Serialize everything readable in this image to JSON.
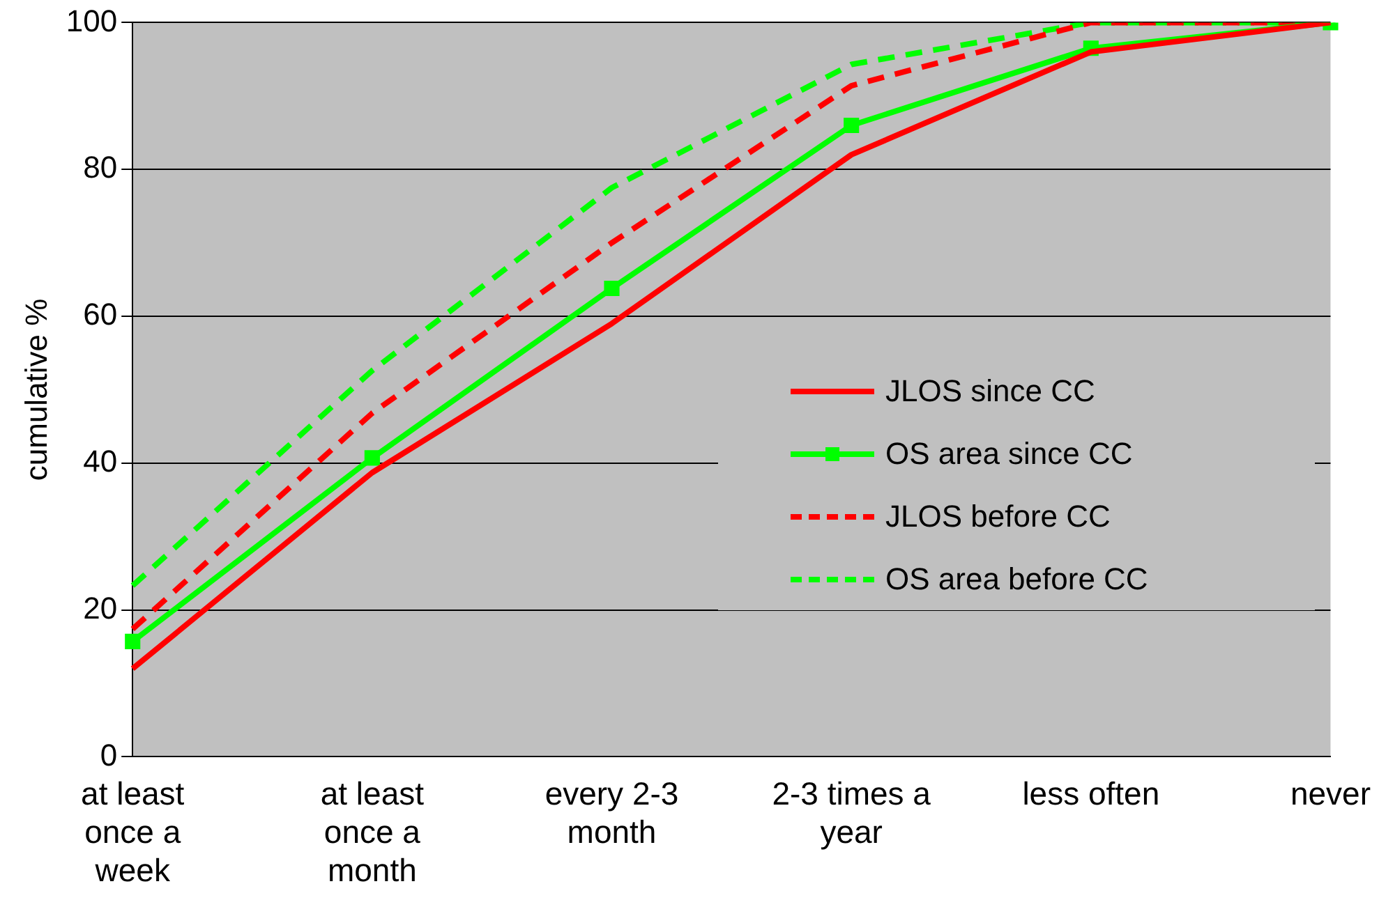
{
  "chart_data": {
    "type": "line",
    "ylabel": "cumulative %",
    "categories": [
      "at least once a week",
      "at least once a month",
      "every 2-3 month",
      "2-3 times a year",
      "less often",
      "never"
    ],
    "ylim": [
      0,
      100
    ],
    "yticks": [
      0,
      20,
      40,
      60,
      80,
      100
    ],
    "grid": "y",
    "legend": "right",
    "series": [
      {
        "name": "JLOS since CC",
        "color": "#ff0000",
        "values": [
          12,
          38.7,
          59,
          82,
          96,
          100
        ],
        "marker": "none",
        "line_style": "solid"
      },
      {
        "name": "OS area since CC",
        "color": "#00ff00",
        "values": [
          15.7,
          40.7,
          63.8,
          86,
          96.5,
          100
        ],
        "marker": "square",
        "line_style": "solid"
      },
      {
        "name": "JLOS before CC",
        "color": "#ff0000",
        "values": [
          17.4,
          46.8,
          70,
          91.4,
          100,
          100
        ],
        "marker": "none",
        "line_style": "dashed"
      },
      {
        "name": "OS area before CC",
        "color": "#00ff00",
        "values": [
          23.3,
          52.6,
          77.5,
          94.3,
          100,
          100
        ],
        "marker": "none",
        "line_style": "dashed"
      }
    ]
  }
}
